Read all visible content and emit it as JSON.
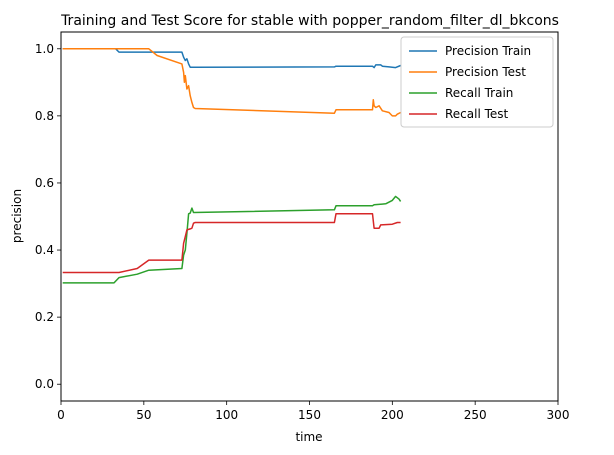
{
  "chart_data": {
    "type": "line",
    "title": "Training and Test Score for stable with popper_random_filter_dl_bkcons",
    "xlabel": "time",
    "ylabel": "precision",
    "xlim": [
      0,
      300
    ],
    "ylim": [
      -0.05,
      1.05
    ],
    "xticks": [
      0,
      50,
      100,
      150,
      200,
      250,
      300
    ],
    "yticks": [
      0.0,
      0.2,
      0.4,
      0.6,
      0.8,
      1.0
    ],
    "xtick_labels": [
      "0",
      "50",
      "100",
      "150",
      "200",
      "250",
      "300"
    ],
    "ytick_labels": [
      "0.0",
      "0.2",
      "0.4",
      "0.6",
      "0.8",
      "1.0"
    ],
    "grid": false,
    "legend_position": "top-right",
    "series": [
      {
        "name": "Precision Train",
        "color": "#1f77b4",
        "points": [
          [
            1,
            1.0
          ],
          [
            33,
            1.0
          ],
          [
            35,
            0.99
          ],
          [
            73,
            0.99
          ],
          [
            74,
            0.975
          ],
          [
            75,
            0.965
          ],
          [
            76,
            0.97
          ],
          [
            77,
            0.955
          ],
          [
            78,
            0.945
          ],
          [
            80,
            0.945
          ],
          [
            165,
            0.946
          ],
          [
            166,
            0.948
          ],
          [
            188,
            0.948
          ],
          [
            189,
            0.944
          ],
          [
            190,
            0.952
          ],
          [
            193,
            0.952
          ],
          [
            194,
            0.948
          ],
          [
            198,
            0.946
          ],
          [
            202,
            0.944
          ],
          [
            205,
            0.95
          ]
        ]
      },
      {
        "name": "Precision Test",
        "color": "#ff7f0e",
        "points": [
          [
            1,
            1.0
          ],
          [
            53,
            1.0
          ],
          [
            58,
            0.98
          ],
          [
            73,
            0.955
          ],
          [
            74,
            0.93
          ],
          [
            74.5,
            0.9
          ],
          [
            75,
            0.92
          ],
          [
            76,
            0.88
          ],
          [
            77,
            0.89
          ],
          [
            78,
            0.86
          ],
          [
            79,
            0.84
          ],
          [
            80,
            0.825
          ],
          [
            81,
            0.822
          ],
          [
            165,
            0.808
          ],
          [
            166,
            0.818
          ],
          [
            188,
            0.818
          ],
          [
            188.5,
            0.848
          ],
          [
            189,
            0.83
          ],
          [
            190,
            0.825
          ],
          [
            192,
            0.83
          ],
          [
            194,
            0.815
          ],
          [
            198,
            0.81
          ],
          [
            200,
            0.8
          ],
          [
            202,
            0.8
          ],
          [
            203,
            0.805
          ],
          [
            205,
            0.81
          ]
        ]
      },
      {
        "name": "Recall Train",
        "color": "#2ca02c",
        "points": [
          [
            1,
            0.302
          ],
          [
            32,
            0.302
          ],
          [
            35,
            0.318
          ],
          [
            46,
            0.328
          ],
          [
            53,
            0.34
          ],
          [
            73,
            0.345
          ],
          [
            74,
            0.385
          ],
          [
            75,
            0.4
          ],
          [
            76,
            0.45
          ],
          [
            77,
            0.508
          ],
          [
            78,
            0.51
          ],
          [
            79,
            0.525
          ],
          [
            80,
            0.512
          ],
          [
            165,
            0.52
          ],
          [
            166,
            0.532
          ],
          [
            188,
            0.532
          ],
          [
            189,
            0.535
          ],
          [
            196,
            0.538
          ],
          [
            200,
            0.548
          ],
          [
            202,
            0.56
          ],
          [
            204,
            0.552
          ],
          [
            205,
            0.545
          ]
        ]
      },
      {
        "name": "Recall Test",
        "color": "#d62728",
        "points": [
          [
            1,
            0.333
          ],
          [
            35,
            0.333
          ],
          [
            46,
            0.345
          ],
          [
            53,
            0.37
          ],
          [
            73,
            0.37
          ],
          [
            74,
            0.42
          ],
          [
            75,
            0.44
          ],
          [
            76,
            0.46
          ],
          [
            78,
            0.463
          ],
          [
            79,
            0.465
          ],
          [
            80,
            0.48
          ],
          [
            81,
            0.482
          ],
          [
            165,
            0.482
          ],
          [
            166,
            0.508
          ],
          [
            188,
            0.508
          ],
          [
            189,
            0.465
          ],
          [
            192,
            0.465
          ],
          [
            193,
            0.475
          ],
          [
            200,
            0.477
          ],
          [
            203,
            0.482
          ],
          [
            205,
            0.482
          ]
        ]
      }
    ]
  }
}
